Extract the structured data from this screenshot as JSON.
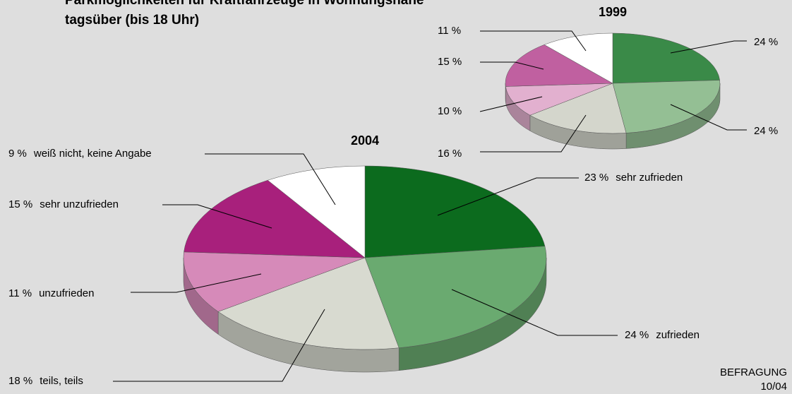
{
  "title": [
    "Parkmöglichkeiten für Kraftfahrzeuge in Wohnungsnähe",
    "tagsüber (bis 18 Uhr)"
  ],
  "footer": [
    "BEFRAGUNG",
    "10/04"
  ],
  "chart_data": [
    {
      "type": "pie",
      "title": "2004",
      "categories": [
        "sehr zufrieden",
        "zufrieden",
        "teils, teils",
        "unzufrieden",
        "sehr unzufrieden",
        "weiß nicht, keine Angabe"
      ],
      "values": [
        23,
        24,
        18,
        11,
        15,
        9
      ],
      "value_labels": [
        "23 %",
        "24 %",
        "18 %",
        "11 %",
        "15 %",
        "9 %"
      ],
      "colors": [
        "#0c6b1e",
        "#6aaa70",
        "#d8dad0",
        "#d68ab9",
        "#a8207c",
        "#ffffff"
      ]
    },
    {
      "type": "pie",
      "title": "1999",
      "values": [
        24,
        24,
        16,
        10,
        15,
        11
      ],
      "value_labels": [
        "24 %",
        "24 %",
        "16 %",
        "10 %",
        "15 %",
        "11 %"
      ],
      "colors": [
        "#3a8a48",
        "#94bf94",
        "#d4d6cc",
        "#e2b0cf",
        "#c060a0",
        "#ffffff"
      ]
    }
  ]
}
